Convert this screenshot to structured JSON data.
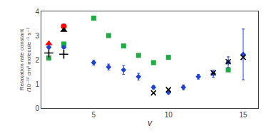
{
  "chart_data": {
    "type": "scatter",
    "xlabel": "v",
    "ylabel": "Relaxation rate constant\n/10⁻¹² cm³ molecule⁻¹ s⁻¹",
    "xlim": [
      1.5,
      16
    ],
    "ylim": [
      0,
      4
    ],
    "xticks": [
      5,
      10,
      15
    ],
    "yticks": [
      0,
      1,
      2,
      3,
      4
    ],
    "grid": false,
    "series": [
      {
        "color": "#22aa44",
        "marker": "square",
        "x": [
          2,
          3,
          5,
          6,
          7,
          8,
          9,
          10,
          14
        ],
        "values": [
          2.07,
          2.65,
          3.72,
          3.0,
          2.57,
          2.18,
          1.88,
          2.1,
          1.58
        ]
      },
      {
        "color": "red",
        "marker": "circle",
        "x": [
          3
        ],
        "values": [
          3.38
        ]
      },
      {
        "color": "black",
        "marker": "triangle-up",
        "x": [
          3
        ],
        "values": [
          3.22
        ]
      },
      {
        "color": "red",
        "marker": "triangle-up",
        "x": [
          2
        ],
        "values": [
          2.67
        ]
      },
      {
        "color": "black",
        "marker": "plus",
        "x": [
          2,
          3
        ],
        "values": [
          2.28,
          2.23
        ]
      },
      {
        "color": "#2244cc",
        "marker": "diamond",
        "x": [
          2,
          3,
          5,
          6,
          7,
          8,
          9,
          10,
          11,
          12,
          13,
          14,
          15
        ],
        "values": [
          2.52,
          2.52,
          1.88,
          1.7,
          1.58,
          1.3,
          0.86,
          0.65,
          0.86,
          1.3,
          1.42,
          1.9,
          2.22
        ],
        "yerr": [
          0.05,
          0.05,
          0.1,
          0.12,
          0.18,
          0.14,
          0.07,
          0.06,
          0.1,
          0.1,
          0.15,
          0.22,
          1.05
        ]
      },
      {
        "color": "black",
        "marker": "x",
        "x": [
          9,
          10,
          13,
          14,
          15
        ],
        "values": [
          0.63,
          0.76,
          1.46,
          1.92,
          2.1
        ]
      }
    ]
  }
}
